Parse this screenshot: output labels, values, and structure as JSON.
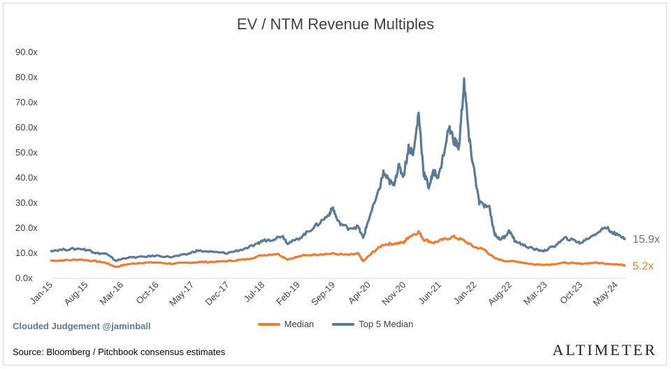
{
  "title": "EV / NTM Revenue Multiples",
  "credit": "Clouded Judgement @jaminball",
  "source": "Source: Bloomberg / Pitchbook consensus estimates",
  "brand": "Altimeter",
  "chart_data": {
    "type": "line",
    "title": "EV / NTM Revenue Multiples",
    "ylim": [
      0,
      90
    ],
    "y_ticks": [
      "0.0x",
      "10.0x",
      "20.0x",
      "30.0x",
      "40.0x",
      "50.0x",
      "60.0x",
      "70.0x",
      "80.0x",
      "90.0x"
    ],
    "x_ticks": [
      "Jan-15",
      "Aug-15",
      "Mar-16",
      "Oct-16",
      "May-17",
      "Dec-17",
      "Jul-18",
      "Feb-19",
      "Sep-19",
      "Apr-20",
      "Nov-20",
      "Jun-21",
      "Jan-22",
      "Aug-22",
      "Mar-23",
      "Oct-23",
      "May-24"
    ],
    "x_range": [
      "Jan-15",
      "Jul-24"
    ],
    "grid": false,
    "legend_position": "bottom",
    "series": [
      {
        "name": "Median",
        "color": "#ed7d31",
        "end_label": "5.2x",
        "points": [
          [
            "Jan-15",
            7.0
          ],
          [
            "Apr-15",
            7.2
          ],
          [
            "Jul-15",
            7.5
          ],
          [
            "Oct-15",
            6.8
          ],
          [
            "Dec-15",
            6.2
          ],
          [
            "Feb-16",
            4.5
          ],
          [
            "Apr-16",
            5.5
          ],
          [
            "Jul-16",
            6.2
          ],
          [
            "Oct-16",
            6.3
          ],
          [
            "Jan-17",
            5.8
          ],
          [
            "Apr-17",
            6.2
          ],
          [
            "Jul-17",
            6.5
          ],
          [
            "Oct-17",
            6.6
          ],
          [
            "Jan-18",
            7.0
          ],
          [
            "Apr-18",
            7.6
          ],
          [
            "Jul-18",
            9.2
          ],
          [
            "Oct-18",
            9.8
          ],
          [
            "Dec-18",
            7.6
          ],
          [
            "Mar-19",
            9.0
          ],
          [
            "Jun-19",
            9.6
          ],
          [
            "Sep-19",
            9.8
          ],
          [
            "Dec-19",
            9.3
          ],
          [
            "Feb-20",
            9.8
          ],
          [
            "Mar-20",
            6.8
          ],
          [
            "May-20",
            10.5
          ],
          [
            "Jul-20",
            13.5
          ],
          [
            "Sep-20",
            13.8
          ],
          [
            "Nov-20",
            14.2
          ],
          [
            "Dec-20",
            16.5
          ],
          [
            "Feb-21",
            18.5
          ],
          [
            "Mar-21",
            15.5
          ],
          [
            "May-21",
            14.2
          ],
          [
            "Jul-21",
            15.5
          ],
          [
            "Sep-21",
            16.5
          ],
          [
            "Nov-21",
            15.0
          ],
          [
            "Jan-22",
            12.5
          ],
          [
            "Mar-22",
            11.5
          ],
          [
            "May-22",
            8.0
          ],
          [
            "Jul-22",
            7.0
          ],
          [
            "Oct-22",
            6.5
          ],
          [
            "Jan-23",
            5.5
          ],
          [
            "Apr-23",
            5.5
          ],
          [
            "Jul-23",
            6.2
          ],
          [
            "Oct-23",
            5.8
          ],
          [
            "Jan-24",
            6.2
          ],
          [
            "Apr-24",
            5.8
          ],
          [
            "Jul-24",
            5.2
          ]
        ]
      },
      {
        "name": "Top 5 Median",
        "color": "#5b7a96",
        "end_label": "15.9x",
        "points": [
          [
            "Jan-15",
            11.0
          ],
          [
            "Apr-15",
            11.5
          ],
          [
            "Jul-15",
            11.8
          ],
          [
            "Sep-15",
            11.0
          ],
          [
            "Oct-15",
            10.0
          ],
          [
            "Dec-15",
            9.8
          ],
          [
            "Feb-16",
            7.0
          ],
          [
            "Apr-16",
            8.2
          ],
          [
            "Jul-16",
            8.5
          ],
          [
            "Oct-16",
            9.0
          ],
          [
            "Jan-17",
            8.5
          ],
          [
            "Apr-17",
            9.5
          ],
          [
            "Jun-17",
            11.0
          ],
          [
            "Sep-17",
            10.5
          ],
          [
            "Dec-17",
            10.0
          ],
          [
            "Mar-18",
            11.5
          ],
          [
            "Jun-18",
            13.5
          ],
          [
            "Jul-18",
            15.0
          ],
          [
            "Sep-18",
            15.5
          ],
          [
            "Nov-18",
            17.0
          ],
          [
            "Dec-18",
            14.0
          ],
          [
            "Feb-19",
            15.5
          ],
          [
            "Apr-19",
            18.5
          ],
          [
            "Jun-19",
            21.5
          ],
          [
            "Aug-19",
            25.0
          ],
          [
            "Sep-19",
            28.0
          ],
          [
            "Oct-19",
            22.5
          ],
          [
            "Dec-19",
            20.0
          ],
          [
            "Feb-20",
            20.5
          ],
          [
            "Mar-20",
            16.0
          ],
          [
            "Apr-20",
            23.0
          ],
          [
            "Jun-20",
            34.0
          ],
          [
            "Jul-20",
            42.0
          ],
          [
            "Aug-20",
            39.0
          ],
          [
            "Sep-20",
            37.0
          ],
          [
            "Oct-20",
            44.5
          ],
          [
            "Nov-20",
            41.0
          ],
          [
            "Dec-20",
            52.0
          ],
          [
            "Jan-21",
            50.0
          ],
          [
            "Feb-21",
            66.0
          ],
          [
            "Mar-21",
            42.0
          ],
          [
            "Apr-21",
            36.5
          ],
          [
            "May-21",
            42.5
          ],
          [
            "Jun-21",
            40.5
          ],
          [
            "Aug-21",
            60.0
          ],
          [
            "Sep-21",
            55.0
          ],
          [
            "Oct-21",
            52.0
          ],
          [
            "Nov-21",
            79.0
          ],
          [
            "Dec-21",
            55.0
          ],
          [
            "Jan-22",
            43.0
          ],
          [
            "Feb-22",
            30.0
          ],
          [
            "Apr-22",
            28.0
          ],
          [
            "May-22",
            18.0
          ],
          [
            "Jun-22",
            15.5
          ],
          [
            "Jul-22",
            16.5
          ],
          [
            "Aug-22",
            19.0
          ],
          [
            "Sep-22",
            15.0
          ],
          [
            "Nov-22",
            13.0
          ],
          [
            "Jan-23",
            11.5
          ],
          [
            "Mar-23",
            11.0
          ],
          [
            "May-23",
            13.0
          ],
          [
            "Jul-23",
            16.0
          ],
          [
            "Sep-23",
            15.0
          ],
          [
            "Oct-23",
            14.0
          ],
          [
            "Dec-23",
            16.5
          ],
          [
            "Feb-24",
            19.0
          ],
          [
            "Mar-24",
            20.5
          ],
          [
            "May-24",
            17.5
          ],
          [
            "Jul-24",
            15.9
          ]
        ]
      }
    ]
  }
}
